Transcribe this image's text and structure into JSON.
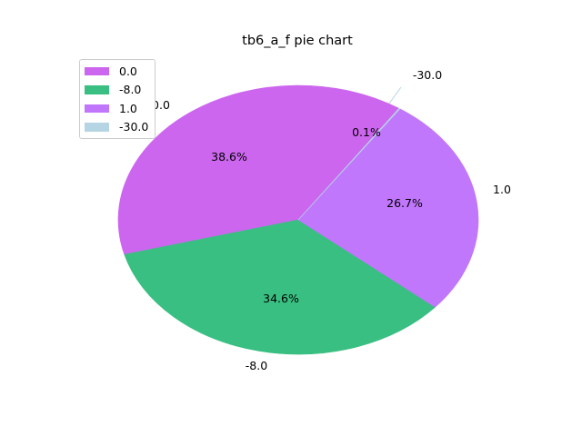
{
  "chart_data": {
    "type": "pie",
    "title": "tb6_a_f pie chart",
    "slices": [
      {
        "label": "0.0",
        "value": 38.6,
        "pct_label": "38.6%",
        "color": "#cc66ee"
      },
      {
        "label": "-8.0",
        "value": 34.6,
        "pct_label": "34.6%",
        "color": "#39bf82"
      },
      {
        "label": "1.0",
        "value": 26.7,
        "pct_label": "26.7%",
        "color": "#c077fb"
      },
      {
        "label": "-30.0",
        "value": 0.1,
        "pct_label": "0.1%",
        "color": "#b5d4e4"
      }
    ],
    "legend_position": "upper-left"
  }
}
